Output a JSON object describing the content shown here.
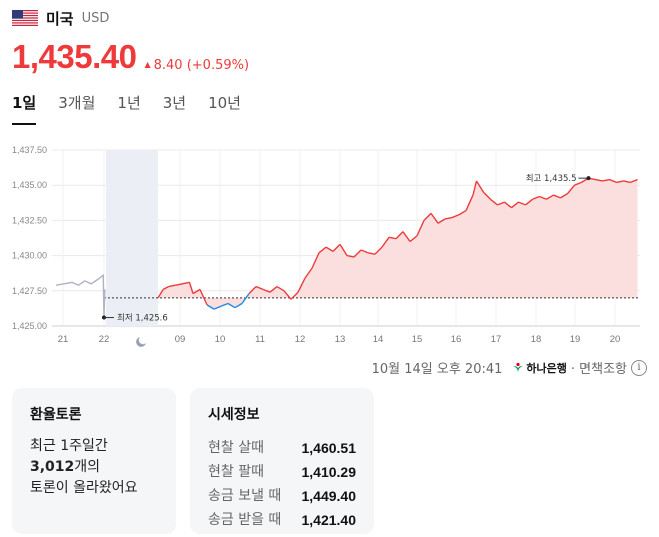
{
  "header": {
    "country": "미국",
    "currency": "USD",
    "flag_icon": "us-flag-icon"
  },
  "price": {
    "current": "1,435.40",
    "change": "8.40 (+0.59%)",
    "change_direction": "up",
    "up_color": "#ee3a3a",
    "down_color": "#1e88e5"
  },
  "tabs": [
    {
      "label": "1일",
      "active": true
    },
    {
      "label": "3개월",
      "active": false
    },
    {
      "label": "1년",
      "active": false
    },
    {
      "label": "3년",
      "active": false
    },
    {
      "label": "10년",
      "active": false
    }
  ],
  "chart_data": {
    "type": "line",
    "y_ticks": [
      "1,437.50",
      "1,435.00",
      "1,432.50",
      "1,430.00",
      "1,427.50",
      "1,425.00"
    ],
    "ylim": [
      1425.0,
      1437.5
    ],
    "x_labels": [
      "21",
      "22",
      "09",
      "10",
      "11",
      "12",
      "13",
      "14",
      "15",
      "16",
      "17",
      "18",
      "19",
      "20"
    ],
    "baseline": 1427.0,
    "annotations": {
      "max_label": "최고 1,435.5",
      "min_label": "최저 1,425.6"
    },
    "night_icon": "moon-icon",
    "prev_series": [
      [
        -3,
        1427.9
      ],
      [
        -2.5,
        1428.0
      ],
      [
        -2,
        1428.1
      ],
      [
        -1.6,
        1427.9
      ],
      [
        -1.2,
        1428.2
      ],
      [
        -0.8,
        1428.0
      ],
      [
        -0.4,
        1428.3
      ],
      [
        -0.05,
        1428.6
      ],
      [
        0.0,
        1425.6
      ],
      [
        0.05,
        1427.6
      ]
    ],
    "series": [
      [
        0.0,
        1427.0
      ],
      [
        0.15,
        1427.6
      ],
      [
        0.3,
        1427.8
      ],
      [
        0.5,
        1427.9
      ],
      [
        0.7,
        1428.0
      ],
      [
        0.9,
        1428.1
      ],
      [
        1.0,
        1427.3
      ],
      [
        1.2,
        1427.6
      ],
      [
        1.4,
        1426.5
      ],
      [
        1.6,
        1426.2
      ],
      [
        1.8,
        1426.4
      ],
      [
        2.0,
        1426.6
      ],
      [
        2.2,
        1426.3
      ],
      [
        2.4,
        1426.6
      ],
      [
        2.6,
        1427.3
      ],
      [
        2.8,
        1427.8
      ],
      [
        3.0,
        1427.6
      ],
      [
        3.2,
        1427.4
      ],
      [
        3.4,
        1427.8
      ],
      [
        3.6,
        1427.5
      ],
      [
        3.8,
        1426.9
      ],
      [
        4.0,
        1427.4
      ],
      [
        4.2,
        1428.4
      ],
      [
        4.4,
        1429.1
      ],
      [
        4.6,
        1430.2
      ],
      [
        4.8,
        1430.6
      ],
      [
        5.0,
        1430.3
      ],
      [
        5.2,
        1430.8
      ],
      [
        5.4,
        1430.0
      ],
      [
        5.6,
        1429.9
      ],
      [
        5.8,
        1430.4
      ],
      [
        6.0,
        1430.2
      ],
      [
        6.2,
        1430.1
      ],
      [
        6.4,
        1430.6
      ],
      [
        6.6,
        1431.3
      ],
      [
        6.8,
        1431.2
      ],
      [
        7.0,
        1431.7
      ],
      [
        7.2,
        1431.0
      ],
      [
        7.4,
        1431.4
      ],
      [
        7.6,
        1432.5
      ],
      [
        7.8,
        1433.0
      ],
      [
        8.0,
        1432.3
      ],
      [
        8.2,
        1432.6
      ],
      [
        8.4,
        1432.7
      ],
      [
        8.6,
        1432.9
      ],
      [
        8.8,
        1433.2
      ],
      [
        9.0,
        1434.3
      ],
      [
        9.1,
        1435.3
      ],
      [
        9.3,
        1434.5
      ],
      [
        9.5,
        1434.0
      ],
      [
        9.7,
        1433.6
      ],
      [
        9.9,
        1433.8
      ],
      [
        10.1,
        1433.4
      ],
      [
        10.3,
        1433.8
      ],
      [
        10.5,
        1433.6
      ],
      [
        10.7,
        1434.0
      ],
      [
        10.9,
        1434.2
      ],
      [
        11.1,
        1434.0
      ],
      [
        11.3,
        1434.3
      ],
      [
        11.5,
        1434.1
      ],
      [
        11.7,
        1434.4
      ],
      [
        11.9,
        1435.0
      ],
      [
        12.1,
        1435.2
      ],
      [
        12.3,
        1435.5
      ],
      [
        12.5,
        1435.4
      ],
      [
        12.7,
        1435.3
      ],
      [
        12.9,
        1435.4
      ],
      [
        13.1,
        1435.2
      ],
      [
        13.3,
        1435.3
      ],
      [
        13.5,
        1435.2
      ],
      [
        13.7,
        1435.4
      ]
    ]
  },
  "source": {
    "timestamp": "10월 14일 오후 20:41",
    "bank": "하나은행",
    "disclaimer": "· 면책조항",
    "info_glyph": "i"
  },
  "talk_card": {
    "title": "환율토론",
    "line1": "최근 1주일간",
    "count": "3,012",
    "count_suffix": "개의",
    "line3": "토론이 올라왔어요"
  },
  "quote_card": {
    "title": "시세정보",
    "rows": [
      {
        "label": "현찰 살때",
        "value": "1,460.51"
      },
      {
        "label": "현찰 팔때",
        "value": "1,410.29"
      },
      {
        "label": "송금 보낼 때",
        "value": "1,449.40"
      },
      {
        "label": "송금 받을 때",
        "value": "1,421.40"
      }
    ]
  }
}
